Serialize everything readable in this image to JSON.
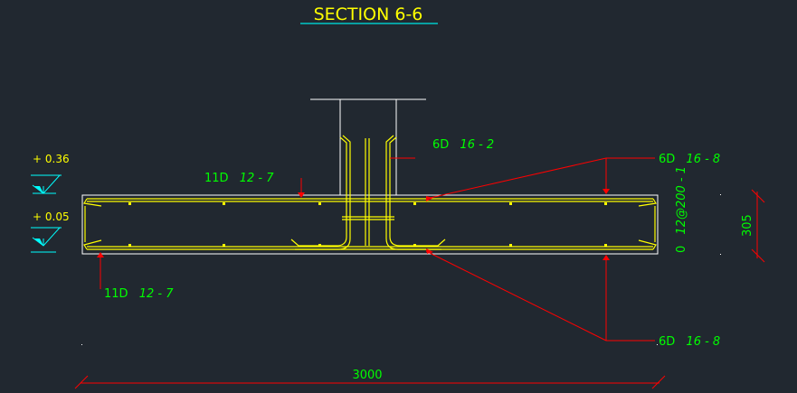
{
  "title": "SECTION 6-6",
  "levels": [
    {
      "label": "+ 0.36"
    },
    {
      "label": "+ 0.05"
    }
  ],
  "rebar_labels": {
    "top_bars": {
      "count": "11D",
      "spec": "12 - 7"
    },
    "bottom_bars": {
      "count": "11D",
      "spec": "12 - 7"
    },
    "column_bars": {
      "count": "6D",
      "spec": "16 - 2"
    },
    "top_right_bars": {
      "count": "6D",
      "spec": "16 - 8"
    },
    "bottom_right_bars": {
      "count": "6D",
      "spec": "16 - 8"
    },
    "stirrups_prefix": "0",
    "stirrups": "12@200 - 1"
  },
  "dimensions": {
    "width": "3000",
    "height": "305"
  },
  "colors": {
    "background": "#212830",
    "title": "#ffff00",
    "title_underline": "#00c8c8",
    "outline": "#ffffff",
    "rebar": "#ffff00",
    "leader": "#ff0000",
    "label": "#00ff00",
    "level_text": "#ffff00",
    "level_symbol": "#00ffff"
  }
}
